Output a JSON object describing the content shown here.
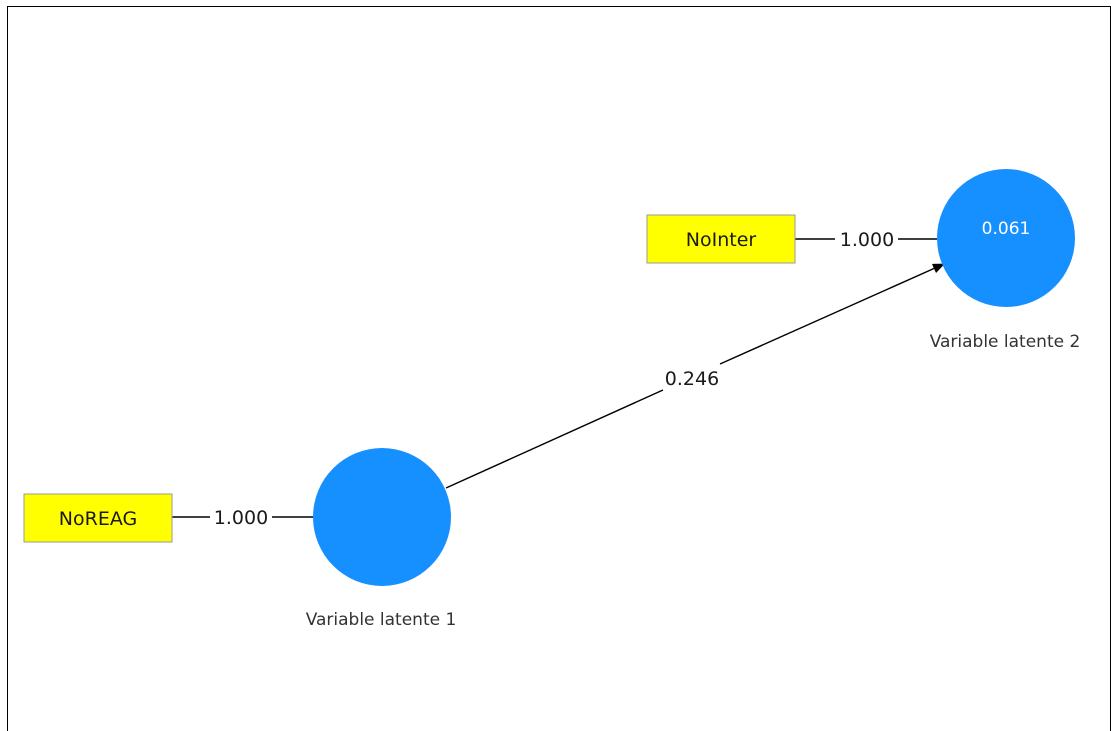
{
  "colors": {
    "latent_fill": "#1790FF",
    "indicator_fill": "#FFFF00",
    "edge": "#000000"
  },
  "indicators": {
    "noreag": {
      "label": "NoREAG"
    },
    "nointer": {
      "label": "NoInter"
    }
  },
  "latent_variables": {
    "lv1": {
      "label": "Variable latente 1",
      "value": ""
    },
    "lv2": {
      "label": "Variable latente 2",
      "value": "0.061"
    }
  },
  "edges": {
    "loading_noreag": {
      "label": "1.000"
    },
    "loading_nointer": {
      "label": "1.000"
    },
    "path_lv1_lv2": {
      "label": "0.246"
    }
  }
}
